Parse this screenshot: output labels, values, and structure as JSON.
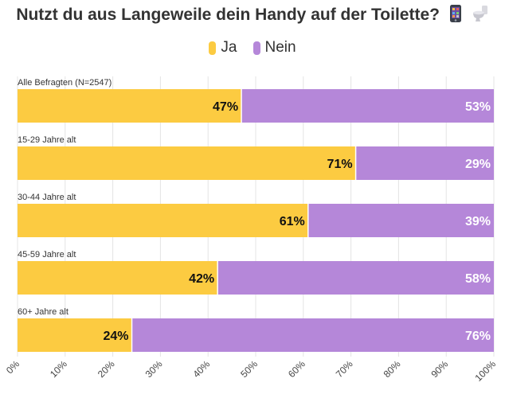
{
  "title": "Nutzt du aus Langeweile dein Handy auf der Toilette?",
  "title_icons": [
    "mobile-phone-icon",
    "toilet-icon"
  ],
  "legend": [
    {
      "label": "Ja",
      "color": "#FCCB41"
    },
    {
      "label": "Nein",
      "color": "#B587D9"
    }
  ],
  "chart_data": {
    "type": "bar",
    "orientation": "horizontal",
    "stacked": true,
    "categories": [
      "Alle Befragten (N=2547)",
      "15-29 Jahre alt",
      "30-44 Jahre alt",
      "45-59 Jahre alt",
      "60+ Jahre alt"
    ],
    "series": [
      {
        "name": "Ja",
        "color": "#FCCB41",
        "values": [
          47,
          71,
          61,
          42,
          24
        ]
      },
      {
        "name": "Nein",
        "color": "#B587D9",
        "values": [
          53,
          29,
          39,
          58,
          76
        ]
      }
    ],
    "data_labels": [
      [
        "47%",
        "71%",
        "61%",
        "42%",
        "24%"
      ],
      [
        "53%",
        "29%",
        "39%",
        "58%",
        "76%"
      ]
    ],
    "x_ticks": [
      "0%",
      "10%",
      "20%",
      "30%",
      "40%",
      "50%",
      "60%",
      "70%",
      "80%",
      "90%",
      "100%"
    ],
    "xlim": [
      0,
      100
    ],
    "grid": true,
    "legend_position": "top-center"
  }
}
